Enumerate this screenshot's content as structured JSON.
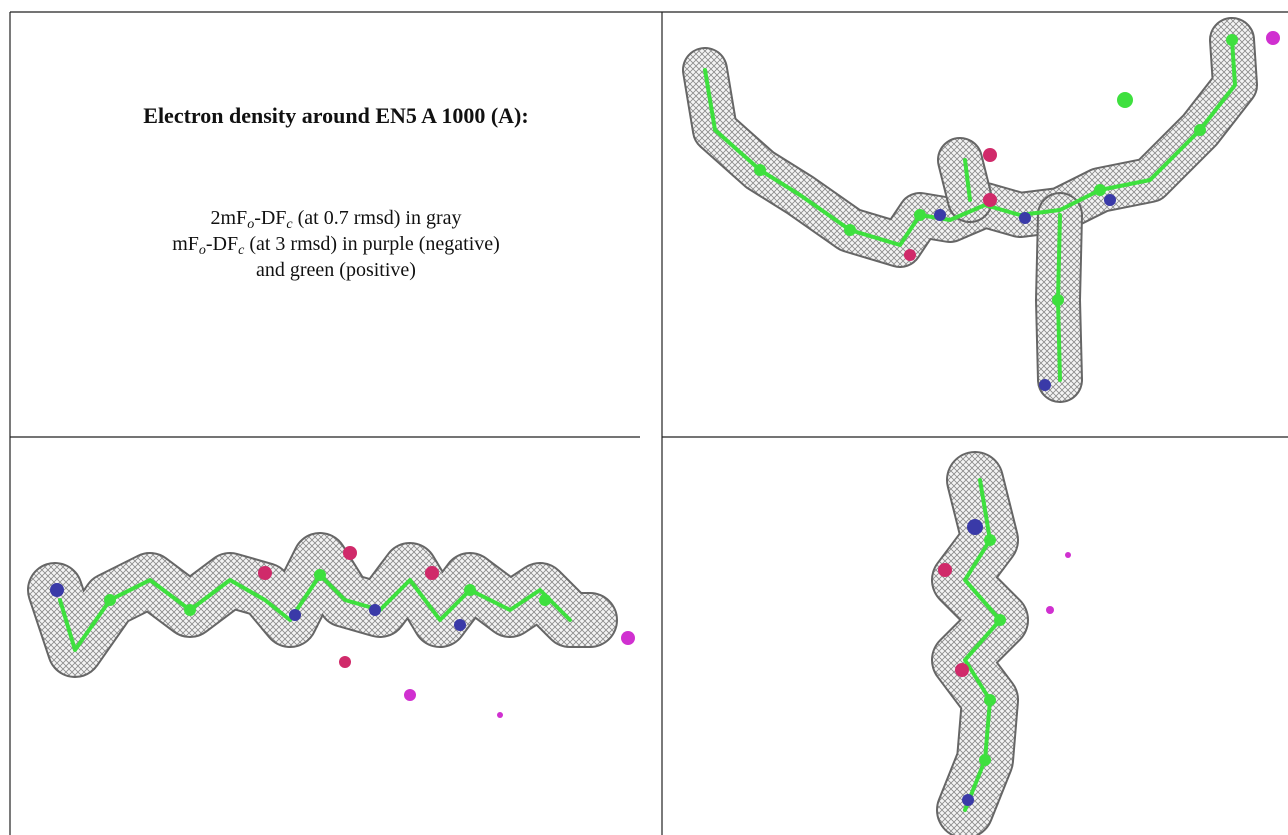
{
  "header": {
    "title": "Electron density around EN5 A 1000 (A):"
  },
  "legend": {
    "lines": [
      [
        "2mF",
        "o",
        "-DF",
        "c",
        " (at 0.7 rmsd) in gray"
      ],
      [
        "mF",
        "o",
        "-DF",
        "c",
        " (at 3 rmsd) in purple (negative)"
      ],
      [
        "and green (positive)"
      ]
    ]
  }
}
